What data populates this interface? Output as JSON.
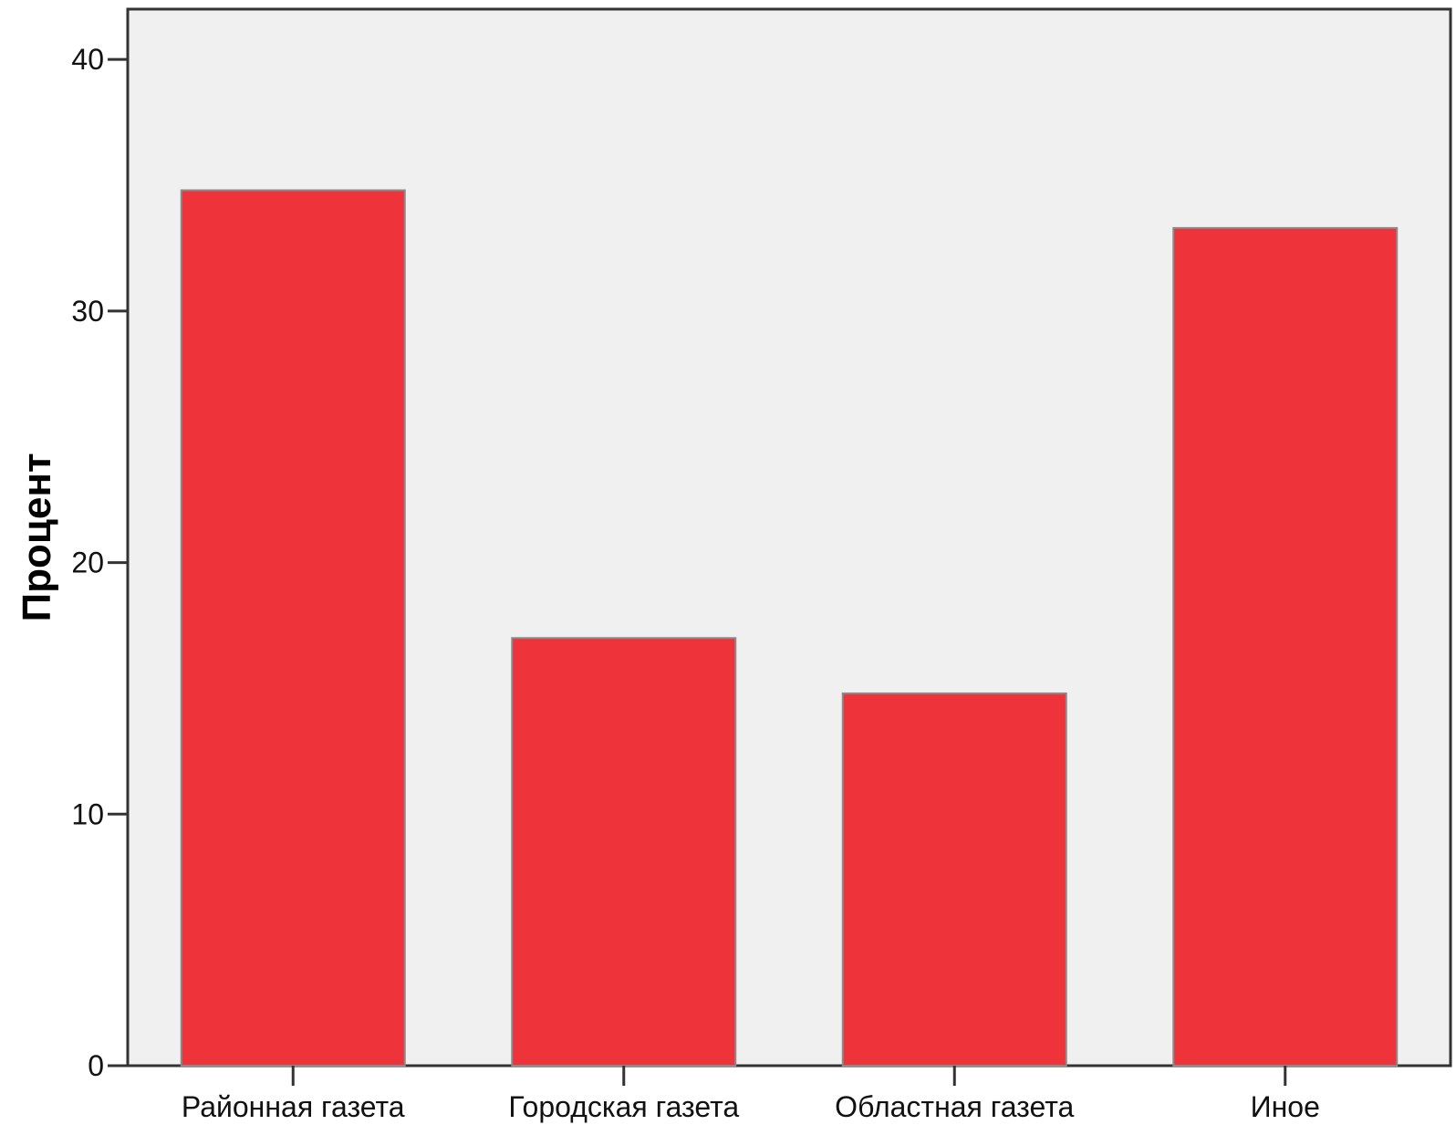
{
  "chart_data": {
    "type": "bar",
    "title": "",
    "xlabel": "",
    "ylabel": "Процент",
    "categories": [
      "Районная газета",
      "Городская газета",
      "Областная газета",
      "Иное"
    ],
    "values": [
      34.8,
      17.0,
      14.8,
      33.3
    ],
    "ylim": [
      0,
      42
    ],
    "yticks": [
      0,
      10,
      20,
      30,
      40
    ],
    "grid": false,
    "legend": "none",
    "colors": {
      "bar": "#ef333b",
      "bar_edge": "#8a8a8a",
      "plot_background": "#f0f0f0",
      "axis": "#333333"
    }
  }
}
